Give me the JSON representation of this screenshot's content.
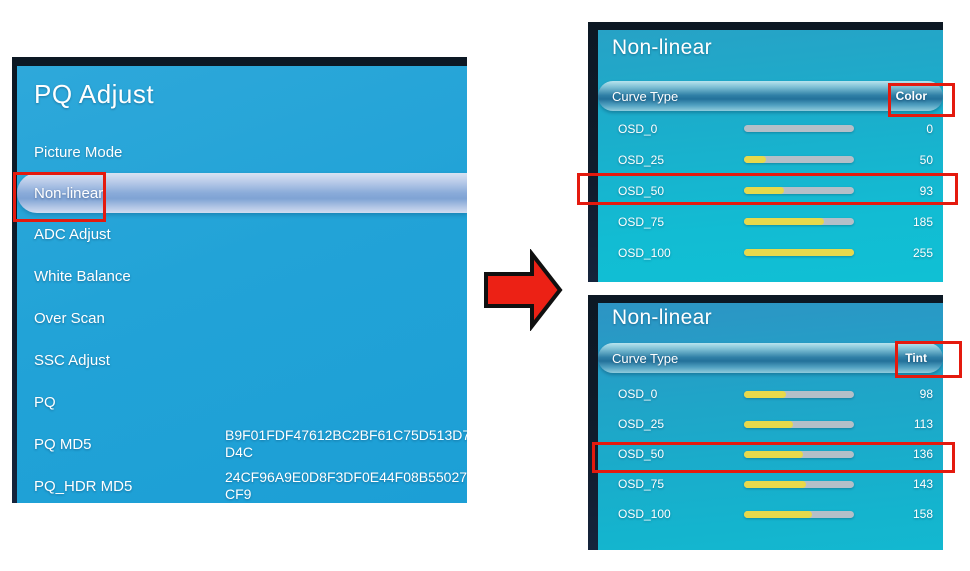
{
  "colors": {
    "annotation_red": "#e41a0e",
    "arrow_red": "#ec2115",
    "bar_fill_yellow": "#e7d94b",
    "bar_track_gray": "#b4bfc8",
    "left_panel_blue": "#22a3d7",
    "right_panel_cyan": "#14b6cf",
    "selected_row_blue": "#8aabd9"
  },
  "left_menu": {
    "title": "PQ Adjust",
    "items": [
      {
        "label": "Picture Mode"
      },
      {
        "label": "Non-linear",
        "selected": true
      },
      {
        "label": "ADC Adjust"
      },
      {
        "label": "White Balance"
      },
      {
        "label": "Over Scan"
      },
      {
        "label": "SSC Adjust"
      },
      {
        "label": "PQ"
      },
      {
        "label": "PQ MD5",
        "value": "B9F01FDF47612BC2BF61C75D513D7D4C"
      },
      {
        "label": "PQ_HDR MD5",
        "value": "24CF96A9E0D8F3DF0E44F08B55027CF9"
      }
    ]
  },
  "arrow": {
    "icon": "arrow-right-icon",
    "direction": "right"
  },
  "color_panel": {
    "title": "Non-linear",
    "header_label": "Curve Type",
    "header_value": "Color",
    "rows": [
      {
        "label": "OSD_0",
        "value": 0,
        "max": 255
      },
      {
        "label": "OSD_25",
        "value": 50,
        "max": 255
      },
      {
        "label": "OSD_50",
        "value": 93,
        "max": 255,
        "highlighted": true
      },
      {
        "label": "OSD_75",
        "value": 185,
        "max": 255
      },
      {
        "label": "OSD_100",
        "value": 255,
        "max": 255
      }
    ]
  },
  "tint_panel": {
    "title": "Non-linear",
    "header_label": "Curve Type",
    "header_value": "Tint",
    "rows": [
      {
        "label": "OSD_0",
        "value": 98,
        "max": 255
      },
      {
        "label": "OSD_25",
        "value": 113,
        "max": 255
      },
      {
        "label": "OSD_50",
        "value": 136,
        "max": 255,
        "highlighted": true
      },
      {
        "label": "OSD_75",
        "value": 143,
        "max": 255
      },
      {
        "label": "OSD_100",
        "value": 158,
        "max": 255
      }
    ]
  },
  "annotations": {
    "highlighted_items": [
      "Non-linear",
      "Color",
      "OSD_50 = 93",
      "Tint",
      "OSD_50 = 136"
    ]
  }
}
